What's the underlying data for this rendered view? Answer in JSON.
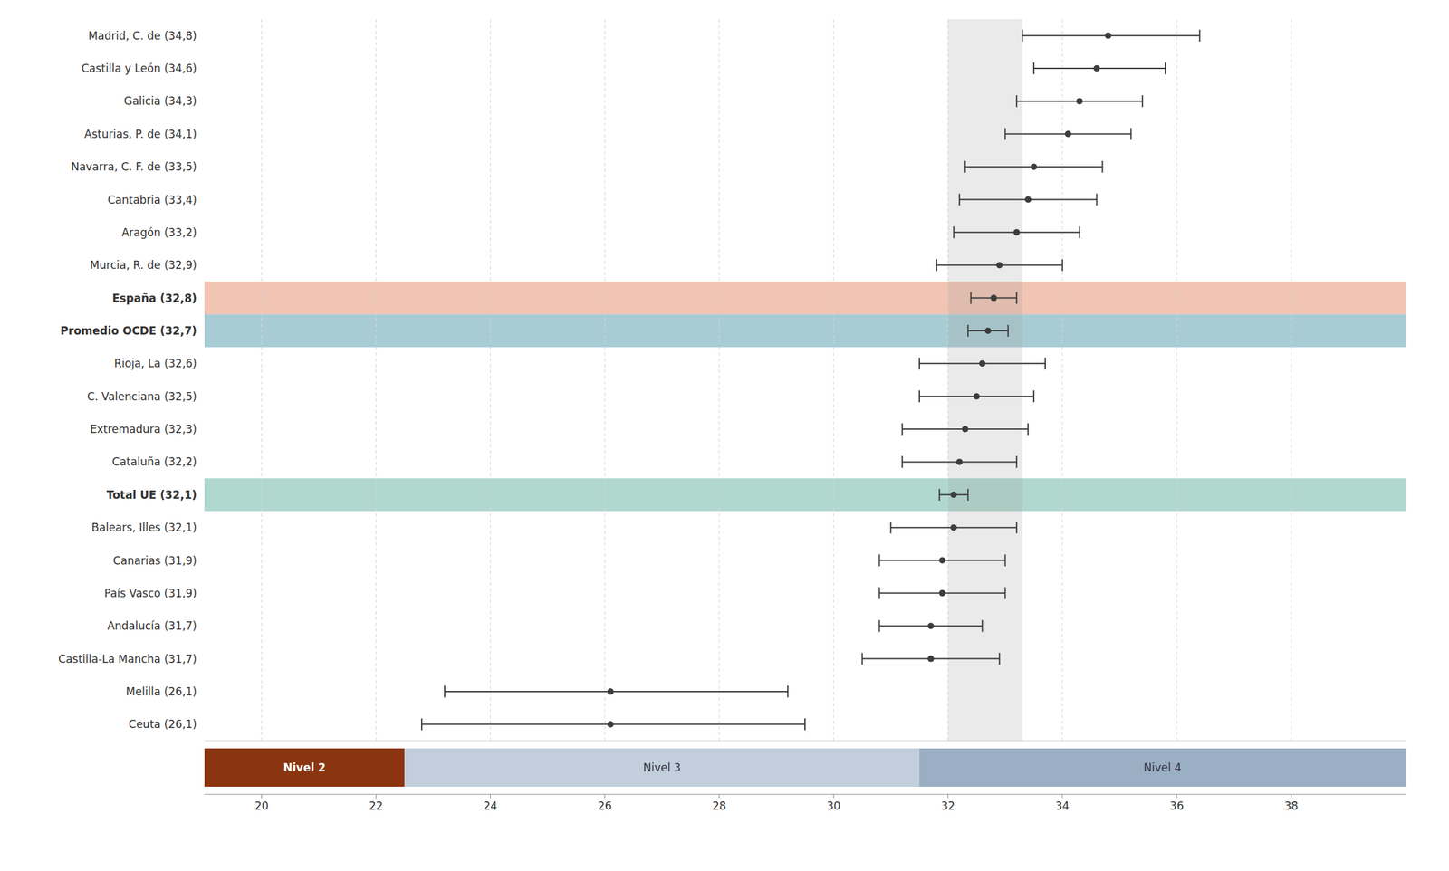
{
  "chart_data": {
    "type": "dot",
    "orientation": "horizontal",
    "categories": [
      "Madrid, C. de (34,8)",
      "Castilla y León (34,6)",
      "Galicia (34,3)",
      "Asturias, P. de (34,1)",
      "Navarra, C. F. de (33,5)",
      "Cantabria (33,4)",
      "Aragón (33,2)",
      "Murcia, R. de (32,9)",
      "España (32,8)",
      "Promedio OCDE (32,7)",
      "Rioja, La (32,6)",
      "C. Valenciana (32,5)",
      "Extremadura (32,3)",
      "Cataluña (32,2)",
      "Total UE (32,1)",
      "Balears, Illes (32,1)",
      "Canarias (31,9)",
      "País Vasco (31,9)",
      "Andalucía (31,7)",
      "Castilla-La Mancha (31,7)",
      "Melilla (26,1)",
      "Ceuta (26,1)"
    ],
    "values": [
      34.8,
      34.6,
      34.3,
      34.1,
      33.5,
      33.4,
      33.2,
      32.9,
      32.8,
      32.7,
      32.6,
      32.5,
      32.3,
      32.2,
      32.1,
      32.1,
      31.9,
      31.9,
      31.7,
      31.7,
      26.1,
      26.1
    ],
    "ci_low": [
      33.3,
      33.5,
      33.2,
      33.0,
      32.3,
      32.2,
      32.1,
      31.8,
      32.4,
      32.35,
      31.5,
      31.5,
      31.2,
      31.2,
      31.85,
      31.0,
      30.8,
      30.8,
      30.8,
      30.5,
      23.2,
      22.8
    ],
    "ci_high": [
      36.4,
      35.8,
      35.4,
      35.2,
      34.7,
      34.6,
      34.3,
      34.0,
      33.2,
      33.05,
      33.7,
      33.5,
      33.4,
      33.2,
      32.35,
      33.2,
      33.0,
      33.0,
      32.6,
      32.9,
      29.2,
      29.5
    ],
    "highlights": [
      null,
      null,
      null,
      null,
      null,
      null,
      null,
      null,
      "#f2c4b4",
      "#a8ccd4",
      null,
      null,
      null,
      null,
      "#b0d8ce",
      null,
      null,
      null,
      null,
      null,
      null,
      null
    ],
    "color": "#3d3d3d",
    "xlim": [
      19.0,
      40.0
    ],
    "xticks": [
      20,
      22,
      24,
      26,
      28,
      30,
      32,
      34,
      36,
      38
    ],
    "grid": true,
    "reference_range": [
      32.0,
      33.3
    ],
    "regions": [
      {
        "label": "Nivel 2",
        "from": 19.0,
        "to": 22.5,
        "color": "#8B3510"
      },
      {
        "label": "Nivel 3",
        "from": 22.5,
        "to": 31.5,
        "color": "#c2cedc"
      },
      {
        "label": "Nivel 4",
        "from": 31.5,
        "to": 40.0,
        "color": "#9aaec4"
      }
    ]
  }
}
